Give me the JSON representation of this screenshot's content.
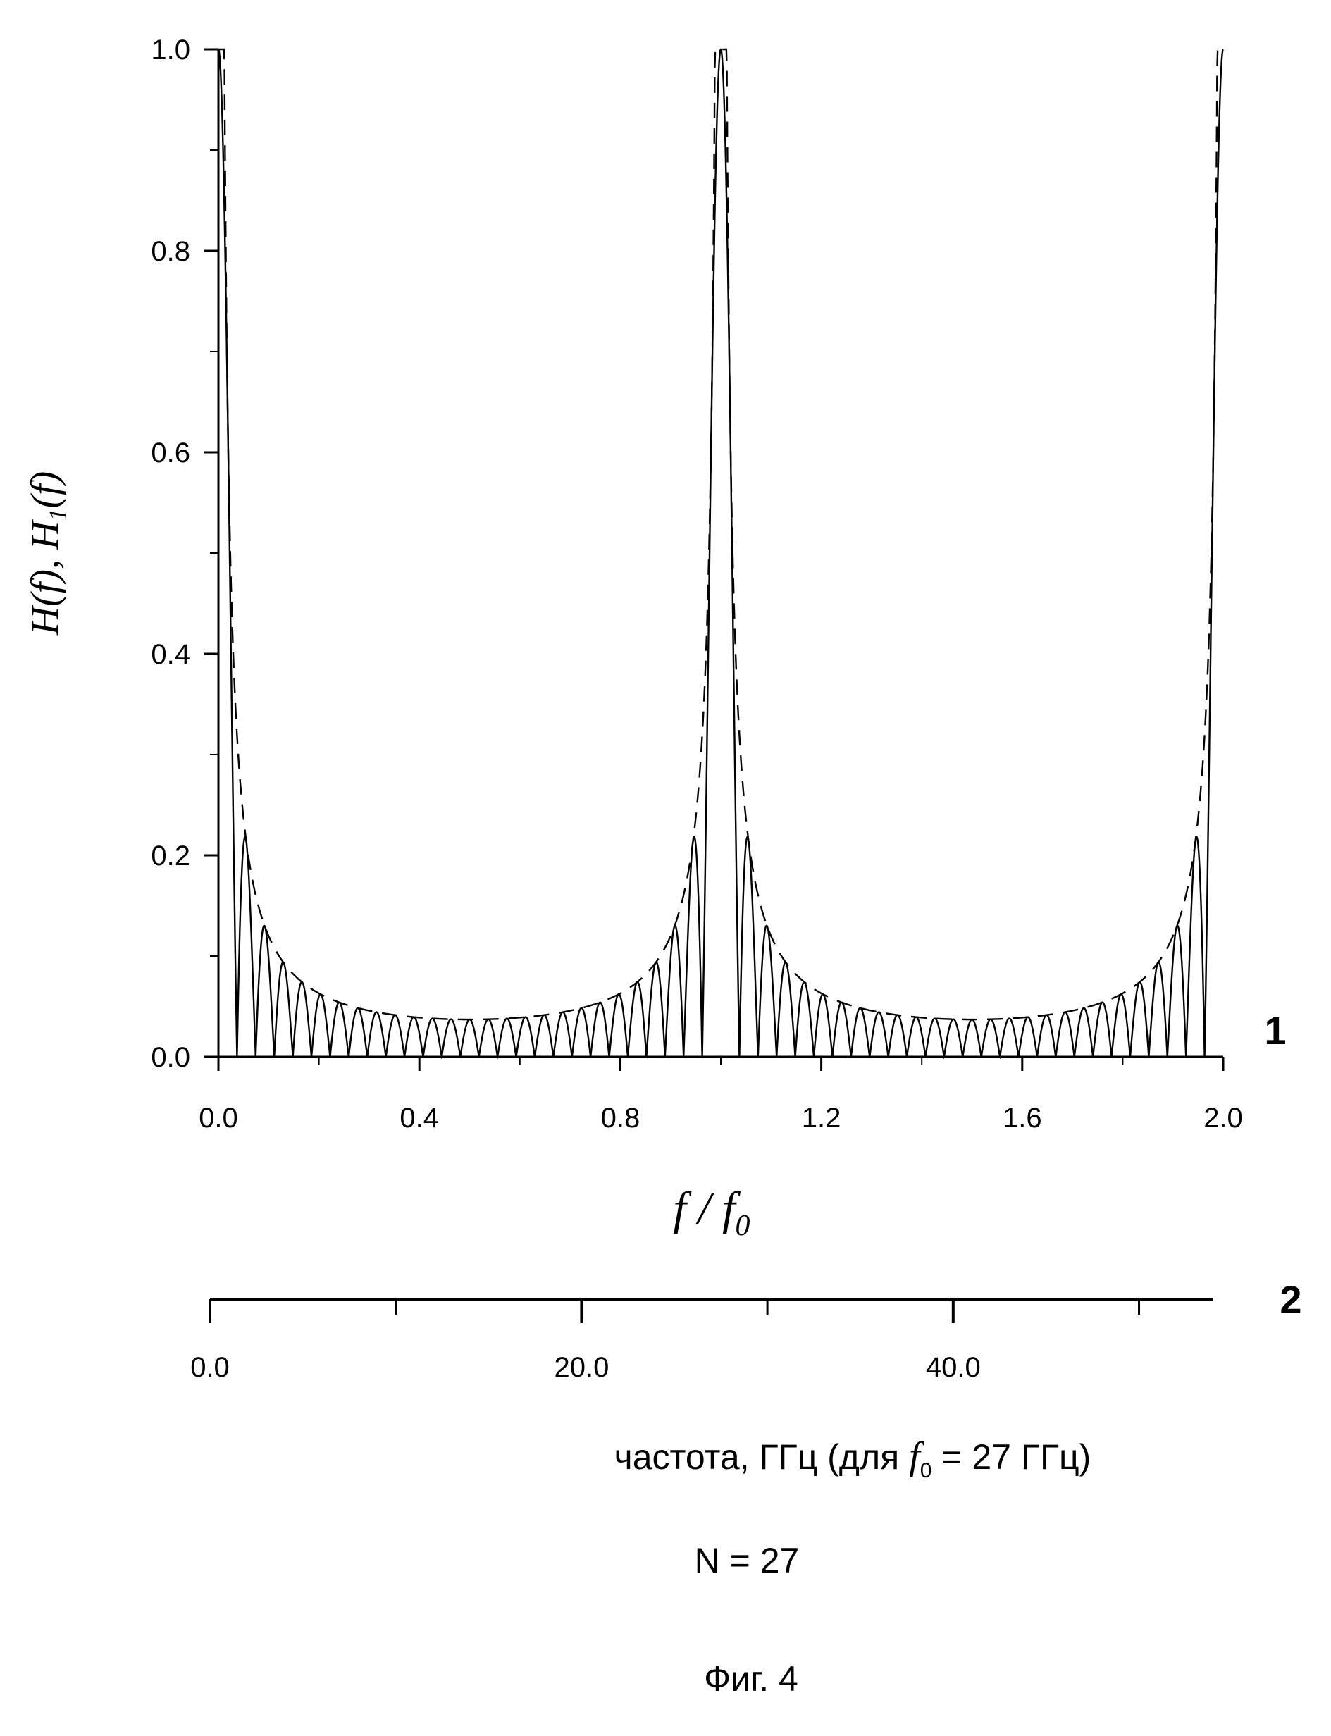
{
  "chart_data": {
    "type": "line",
    "ylabel": "H(f), H1(f)",
    "xlabel": "f / f0",
    "ylim": [
      0,
      1
    ],
    "xlim": [
      0,
      2
    ],
    "y_ticks": [
      "0.0",
      "0.2",
      "0.4",
      "0.6",
      "0.8",
      "1.0"
    ],
    "x_ticks": [
      "0.0",
      "0.4",
      "0.8",
      "1.2",
      "1.6",
      "2.0"
    ],
    "grid": false,
    "series": [
      {
        "line_style": "solid",
        "formula": "|sin(pi*N*(x-1)) / (N*sin(pi*(x-1)))|",
        "N": 27
      },
      {
        "line_style": "dashed",
        "formula": "envelope |1 / (N*sin(pi*(x-1)))|, capped at 1",
        "N": 27
      }
    ],
    "curve_label": "1",
    "secondary_axis": {
      "label_main": "частота, ГГц (для",
      "label_f": "f",
      "label_f_sub": "0",
      "label_tail": "= 27 ГГц)",
      "ticks": [
        "0.0",
        "20.0",
        "40.0"
      ],
      "range": [
        0,
        54
      ],
      "marker": "2"
    },
    "note": "N = 27",
    "figure_caption": "Фиг. 4"
  }
}
